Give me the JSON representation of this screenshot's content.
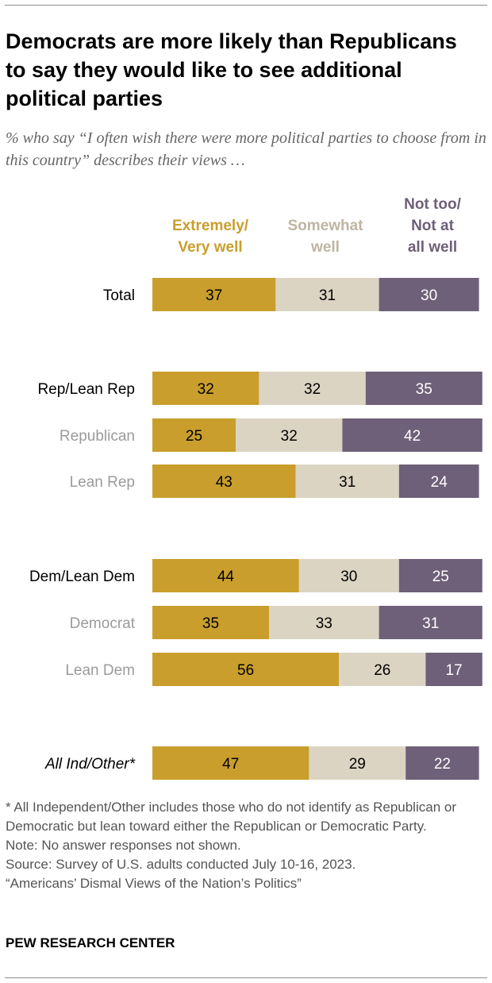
{
  "title": "Democrats are more likely than Republicans to say they would like to see additional political parties",
  "subtitle": "% who say “I often wish there were more political parties to choose from in this country” describes their views …",
  "colors": {
    "extremely": "#C99E2C",
    "somewhat": "#DBD4C3",
    "not": "#6E6078",
    "somewhat_header": "#BEB5A3",
    "subgroup_label": "#9B9B9B"
  },
  "chart_data": {
    "type": "bar",
    "orientation": "horizontal",
    "stacked": true,
    "series": [
      {
        "name": "Extremely/\nVery well",
        "color": "#C99E2C",
        "values": [
          37,
          32,
          25,
          43,
          44,
          35,
          56,
          47
        ]
      },
      {
        "name": "Somewhat\nwell",
        "color": "#DBD4C3",
        "values": [
          31,
          32,
          32,
          31,
          30,
          33,
          26,
          29
        ]
      },
      {
        "name": "Not too/\nNot at\nall well",
        "color": "#6E6078",
        "values": [
          30,
          35,
          42,
          24,
          25,
          31,
          17,
          22
        ]
      }
    ],
    "categories": [
      {
        "label": "Total",
        "style": "main"
      },
      {
        "label": "Rep/Lean Rep",
        "style": "main"
      },
      {
        "label": "Republican",
        "style": "sub"
      },
      {
        "label": "Lean Rep",
        "style": "sub"
      },
      {
        "label": "Dem/Lean Dem",
        "style": "main"
      },
      {
        "label": "Democrat",
        "style": "sub"
      },
      {
        "label": "Lean Dem",
        "style": "sub"
      },
      {
        "label": "All Ind/Other*",
        "style": "italic"
      }
    ],
    "groups": [
      [
        0
      ],
      [
        1,
        2,
        3
      ],
      [
        4,
        5,
        6
      ],
      [
        7
      ]
    ],
    "xlim": [
      0,
      100
    ],
    "grid": false,
    "legend": "top"
  },
  "footnotes": [
    "* All Independent/Other includes those who do not identify as Republican or Democratic but lean toward either the Republican or Democratic Party.",
    "Note: No answer responses not shown.",
    "Source: Survey of U.S. adults conducted July 10-16, 2023.",
    "“Americans’ Dismal Views of the Nation’s Politics”"
  ],
  "brand": "PEW RESEARCH CENTER"
}
